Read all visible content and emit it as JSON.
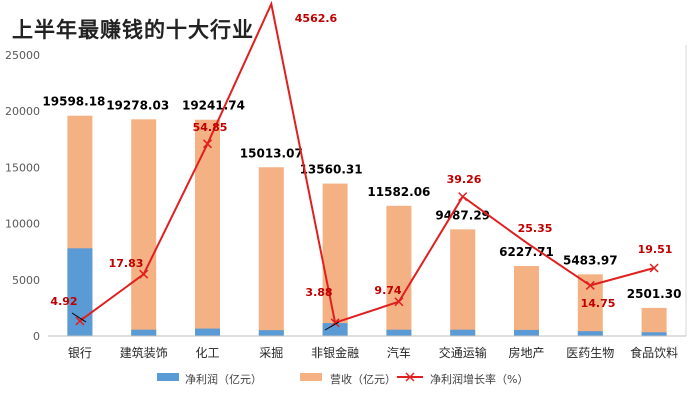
{
  "chart_data": {
    "type": "bar",
    "title": "上半年最赚钱的十大行业",
    "categories": [
      "银行",
      "建筑装饰",
      "化工",
      "采掘",
      "非银金融",
      "汽车",
      "交通运输",
      "房地产",
      "医药生物",
      "食品饮料"
    ],
    "revenue_labels": [
      "19598.18",
      "19278.03",
      "19241.74",
      "15013.07",
      "13560.31",
      "11582.06",
      "9487.29",
      "6227.71",
      "5483.97",
      "2501.30"
    ],
    "growth_labels": [
      "4.92",
      "17.83",
      "54.85",
      "4562.6",
      "3.88",
      "9.74",
      "39.26",
      "25.35",
      "14.75",
      "19.51"
    ],
    "series": [
      {
        "name": "净利润（亿元）",
        "type": "bar",
        "stacked": true,
        "color": "#5b9bd5",
        "values": [
          7800,
          560,
          660,
          520,
          1150,
          560,
          560,
          540,
          430,
          330
        ]
      },
      {
        "name": "营收（亿元）",
        "type": "bar",
        "stacked": true,
        "color": "#f4b183",
        "values": [
          19598.18,
          19278.03,
          19241.74,
          15013.07,
          13560.31,
          11582.06,
          9487.29,
          6227.71,
          5483.97,
          2501.3
        ]
      },
      {
        "name": "净利润增长率（%）",
        "type": "line",
        "color": "#e02020",
        "marker": "x",
        "values": [
          4.92,
          17.83,
          54.85,
          4562.6,
          3.88,
          9.74,
          39.26,
          25.35,
          14.75,
          19.51
        ]
      }
    ],
    "yaxis": {
      "ticks": [
        "0",
        "5000",
        "10000",
        "15000",
        "20000",
        "25000"
      ],
      "ylim": [
        0,
        25000
      ]
    },
    "grid": false,
    "legend_position": "bottom"
  }
}
